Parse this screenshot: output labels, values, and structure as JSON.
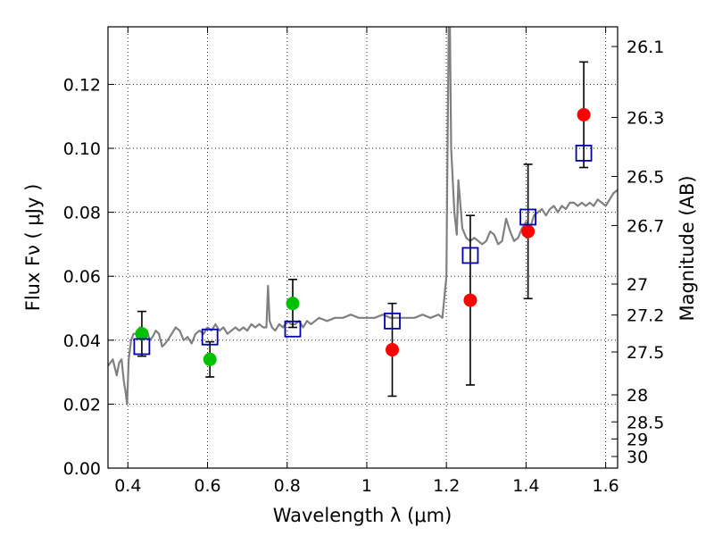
{
  "chart_data": {
    "type": "scatter",
    "xlabel": "Wavelength  λ (μm)",
    "ylabel": "Flux  Fν  ( μJy )",
    "y2label": "Magnitude (AB)",
    "xlim": [
      0.35,
      1.63
    ],
    "ylim": [
      0.0,
      0.138
    ],
    "grid": true,
    "x_ticks": [
      {
        "value": 0.4,
        "label": "0.4"
      },
      {
        "value": 0.6,
        "label": "0.6"
      },
      {
        "value": 0.8,
        "label": "0.8"
      },
      {
        "value": 1.0,
        "label": "1"
      },
      {
        "value": 1.2,
        "label": "1.2"
      },
      {
        "value": 1.4,
        "label": "1.4"
      },
      {
        "value": 1.6,
        "label": "1.6"
      }
    ],
    "y_ticks": [
      {
        "value": 0.0,
        "label": "0.00"
      },
      {
        "value": 0.02,
        "label": "0.02"
      },
      {
        "value": 0.04,
        "label": "0.04"
      },
      {
        "value": 0.06,
        "label": "0.06"
      },
      {
        "value": 0.08,
        "label": "0.08"
      },
      {
        "value": 0.1,
        "label": "0.10"
      },
      {
        "value": 0.12,
        "label": "0.12"
      }
    ],
    "y2_ticks": [
      {
        "value": 26.1,
        "label": "26.1"
      },
      {
        "value": 26.3,
        "label": "26.3"
      },
      {
        "value": 26.5,
        "label": "26.5"
      },
      {
        "value": 26.7,
        "label": "26.7"
      },
      {
        "value": 27.0,
        "label": "27"
      },
      {
        "value": 27.2,
        "label": "27.2"
      },
      {
        "value": 27.5,
        "label": "27.5"
      },
      {
        "value": 28.0,
        "label": "28"
      },
      {
        "value": 28.5,
        "label": "28.5"
      },
      {
        "value": 29.0,
        "label": "29"
      },
      {
        "value": 30.0,
        "label": "30"
      }
    ],
    "series": [
      {
        "type": "line",
        "color": "#808080",
        "x": [
          0.35,
          0.362,
          0.372,
          0.378,
          0.384,
          0.39,
          0.394,
          0.398,
          0.402,
          0.408,
          0.414,
          0.42,
          0.43,
          0.44,
          0.448,
          0.455,
          0.462,
          0.47,
          0.478,
          0.486,
          0.494,
          0.5,
          0.51,
          0.52,
          0.53,
          0.54,
          0.55,
          0.56,
          0.57,
          0.58,
          0.59,
          0.6,
          0.61,
          0.62,
          0.63,
          0.64,
          0.65,
          0.66,
          0.67,
          0.68,
          0.69,
          0.7,
          0.71,
          0.72,
          0.73,
          0.74,
          0.748,
          0.752,
          0.756,
          0.762,
          0.77,
          0.78,
          0.79,
          0.8,
          0.81,
          0.82,
          0.83,
          0.84,
          0.85,
          0.86,
          0.87,
          0.88,
          0.9,
          0.92,
          0.94,
          0.96,
          0.98,
          1.0,
          1.02,
          1.04,
          1.06,
          1.08,
          1.1,
          1.12,
          1.14,
          1.16,
          1.18,
          1.19,
          1.2,
          1.202,
          1.206,
          1.208,
          1.212,
          1.216,
          1.22,
          1.226,
          1.23,
          1.24,
          1.25,
          1.26,
          1.27,
          1.28,
          1.29,
          1.3,
          1.31,
          1.32,
          1.33,
          1.34,
          1.35,
          1.36,
          1.37,
          1.38,
          1.39,
          1.4,
          1.41,
          1.42,
          1.43,
          1.44,
          1.45,
          1.46,
          1.47,
          1.48,
          1.49,
          1.5,
          1.51,
          1.52,
          1.53,
          1.54,
          1.55,
          1.56,
          1.57,
          1.58,
          1.59,
          1.6,
          1.61,
          1.62,
          1.63
        ],
        "y": [
          0.032,
          0.034,
          0.029,
          0.033,
          0.034,
          0.027,
          0.024,
          0.02,
          0.034,
          0.04,
          0.042,
          0.042,
          0.044,
          0.043,
          0.043,
          0.04,
          0.041,
          0.043,
          0.042,
          0.038,
          0.039,
          0.04,
          0.042,
          0.044,
          0.043,
          0.04,
          0.041,
          0.039,
          0.042,
          0.043,
          0.042,
          0.044,
          0.043,
          0.045,
          0.043,
          0.044,
          0.042,
          0.043,
          0.044,
          0.043,
          0.044,
          0.043,
          0.045,
          0.044,
          0.045,
          0.044,
          0.044,
          0.057,
          0.046,
          0.044,
          0.043,
          0.045,
          0.044,
          0.046,
          0.045,
          0.045,
          0.046,
          0.044,
          0.046,
          0.045,
          0.046,
          0.047,
          0.046,
          0.047,
          0.047,
          0.048,
          0.047,
          0.047,
          0.047,
          0.048,
          0.047,
          0.047,
          0.047,
          0.047,
          0.048,
          0.047,
          0.048,
          0.047,
          0.06,
          0.09,
          0.14,
          0.15,
          0.1,
          0.09,
          0.08,
          0.073,
          0.09,
          0.075,
          0.072,
          0.071,
          0.072,
          0.071,
          0.07,
          0.071,
          0.074,
          0.073,
          0.07,
          0.071,
          0.078,
          0.074,
          0.071,
          0.072,
          0.075,
          0.077,
          0.075,
          0.079,
          0.08,
          0.081,
          0.079,
          0.081,
          0.082,
          0.08,
          0.082,
          0.081,
          0.083,
          0.083,
          0.082,
          0.083,
          0.082,
          0.083,
          0.082,
          0.084,
          0.083,
          0.082,
          0.084,
          0.086,
          0.087
        ]
      },
      {
        "type": "scatter",
        "marker": "circle",
        "color": "#00c000",
        "points": [
          {
            "x": 0.435,
            "y": 0.042,
            "err": 0.007
          },
          {
            "x": 0.606,
            "y": 0.034,
            "err": 0.0055
          },
          {
            "x": 0.814,
            "y": 0.0515,
            "err": 0.0075
          }
        ]
      },
      {
        "type": "scatter",
        "marker": "circle",
        "color": "#ff0000",
        "points": [
          {
            "x": 1.064,
            "y": 0.037,
            "err": 0.0145
          },
          {
            "x": 1.26,
            "y": 0.0525,
            "err": 0.0265
          },
          {
            "x": 1.405,
            "y": 0.074,
            "err": 0.021
          },
          {
            "x": 1.545,
            "y": 0.1105,
            "err": 0.0165
          }
        ]
      },
      {
        "type": "scatter",
        "marker": "square-open",
        "color": "#0000aa",
        "points": [
          {
            "x": 0.435,
            "y": 0.038
          },
          {
            "x": 0.606,
            "y": 0.041
          },
          {
            "x": 0.814,
            "y": 0.0435
          },
          {
            "x": 1.064,
            "y": 0.046
          },
          {
            "x": 1.26,
            "y": 0.0665
          },
          {
            "x": 1.405,
            "y": 0.0785
          },
          {
            "x": 1.545,
            "y": 0.0985
          }
        ]
      }
    ]
  }
}
